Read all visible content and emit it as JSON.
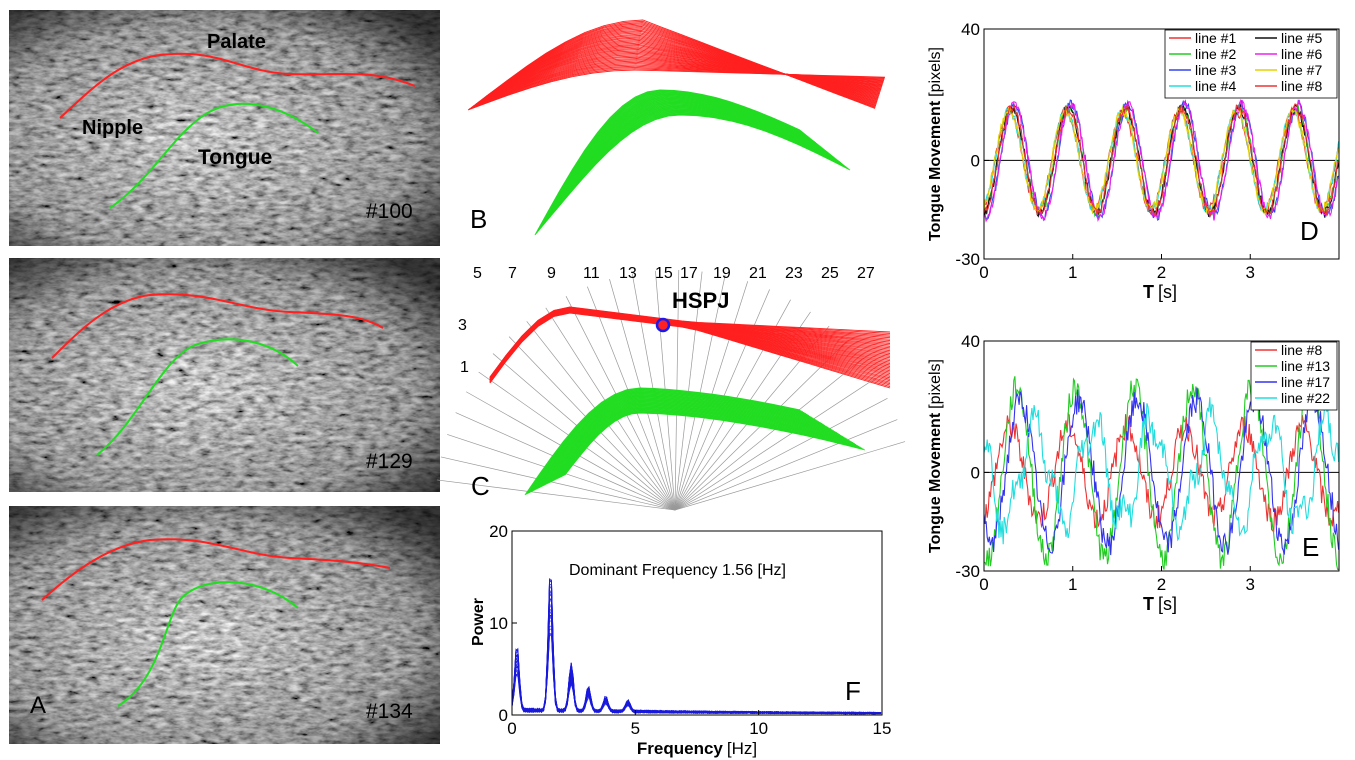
{
  "panels": {
    "a": {
      "letter": "A",
      "labels": {
        "palate": "Palate",
        "nipple": "Nipple",
        "tongue": "Tongue"
      },
      "frames": [
        "#100",
        "#129",
        "#134"
      ]
    },
    "b": {
      "letter": "B"
    },
    "c": {
      "letter": "C",
      "hspj": "HSPJ",
      "line_numbers_top": [
        "5",
        "7",
        "9",
        "11",
        "13",
        "15",
        "17",
        "19",
        "21",
        "23",
        "25",
        "27"
      ],
      "line_numbers_left": [
        "3",
        "1"
      ]
    },
    "f": {
      "letter": "F",
      "annotation": "Dominant Frequency 1.56 [Hz]"
    },
    "d": {
      "letter": "D"
    },
    "e": {
      "letter": "E"
    }
  },
  "colors": {
    "palate": "#ff2020",
    "tongue": "#22dd22",
    "nipple": "#dd22aa",
    "frame_label": "#f0e020",
    "hspj": "#1a1aee",
    "spectrum": "#1a1add"
  },
  "chart_data": [
    {
      "id": "D",
      "type": "line",
      "xlabel_main": "T",
      "xlabel_unit": "[s]",
      "ylabel_main": "Tongue Movement",
      "ylabel_unit": "[pixels]",
      "xlim": [
        0,
        4
      ],
      "ylim": [
        -30,
        40
      ],
      "xticks": [
        "0",
        "1",
        "2",
        "3"
      ],
      "yticks": [
        "40",
        "0",
        "-30"
      ],
      "period": 0.64,
      "amplitude_min": -18,
      "amplitude_max": 18,
      "series": [
        {
          "name": "line #1",
          "color": "#ee3333"
        },
        {
          "name": "line #2",
          "color": "#22cc22"
        },
        {
          "name": "line #3",
          "color": "#3344ee"
        },
        {
          "name": "line #4",
          "color": "#22dddd"
        },
        {
          "name": "line #5",
          "color": "#111111"
        },
        {
          "name": "line #6",
          "color": "#ee22ee"
        },
        {
          "name": "line #7",
          "color": "#e6d000"
        },
        {
          "name": "line #8",
          "color": "#ee3333"
        }
      ]
    },
    {
      "id": "E",
      "type": "line",
      "xlabel_main": "T",
      "xlabel_unit": "[s]",
      "ylabel_main": "Tongue Movement",
      "ylabel_unit": "[pixels]",
      "xlim": [
        0,
        4
      ],
      "ylim": [
        -30,
        40
      ],
      "xticks": [
        "0",
        "1",
        "2",
        "3"
      ],
      "yticks": [
        "40",
        "0",
        "-30"
      ],
      "period": 0.66,
      "series": [
        {
          "name": "line #8",
          "color": "#ee3333",
          "amplitude": 14,
          "phase": 0.0
        },
        {
          "name": "line #13",
          "color": "#22cc22",
          "amplitude": 26,
          "phase": 0.08
        },
        {
          "name": "line #17",
          "color": "#3333ee",
          "amplitude": 22,
          "phase": 0.12
        },
        {
          "name": "line #22",
          "color": "#22dddd",
          "amplitude": 15,
          "phase": 0.28
        }
      ]
    },
    {
      "id": "F",
      "type": "line",
      "xlabel_main": "Frequency",
      "xlabel_unit": "[Hz]",
      "ylabel": "Power",
      "xlim": [
        0,
        15
      ],
      "ylim": [
        0,
        20
      ],
      "xticks": [
        "0",
        "5",
        "10",
        "15"
      ],
      "yticks": [
        "0",
        "10",
        "20"
      ],
      "peaks": [
        {
          "f": 0.2,
          "power": 7.5
        },
        {
          "f": 1.56,
          "power": 18
        },
        {
          "f": 2.4,
          "power": 6.5
        },
        {
          "f": 3.1,
          "power": 3.5
        },
        {
          "f": 3.8,
          "power": 2.2
        },
        {
          "f": 4.7,
          "power": 1.8
        }
      ]
    }
  ]
}
